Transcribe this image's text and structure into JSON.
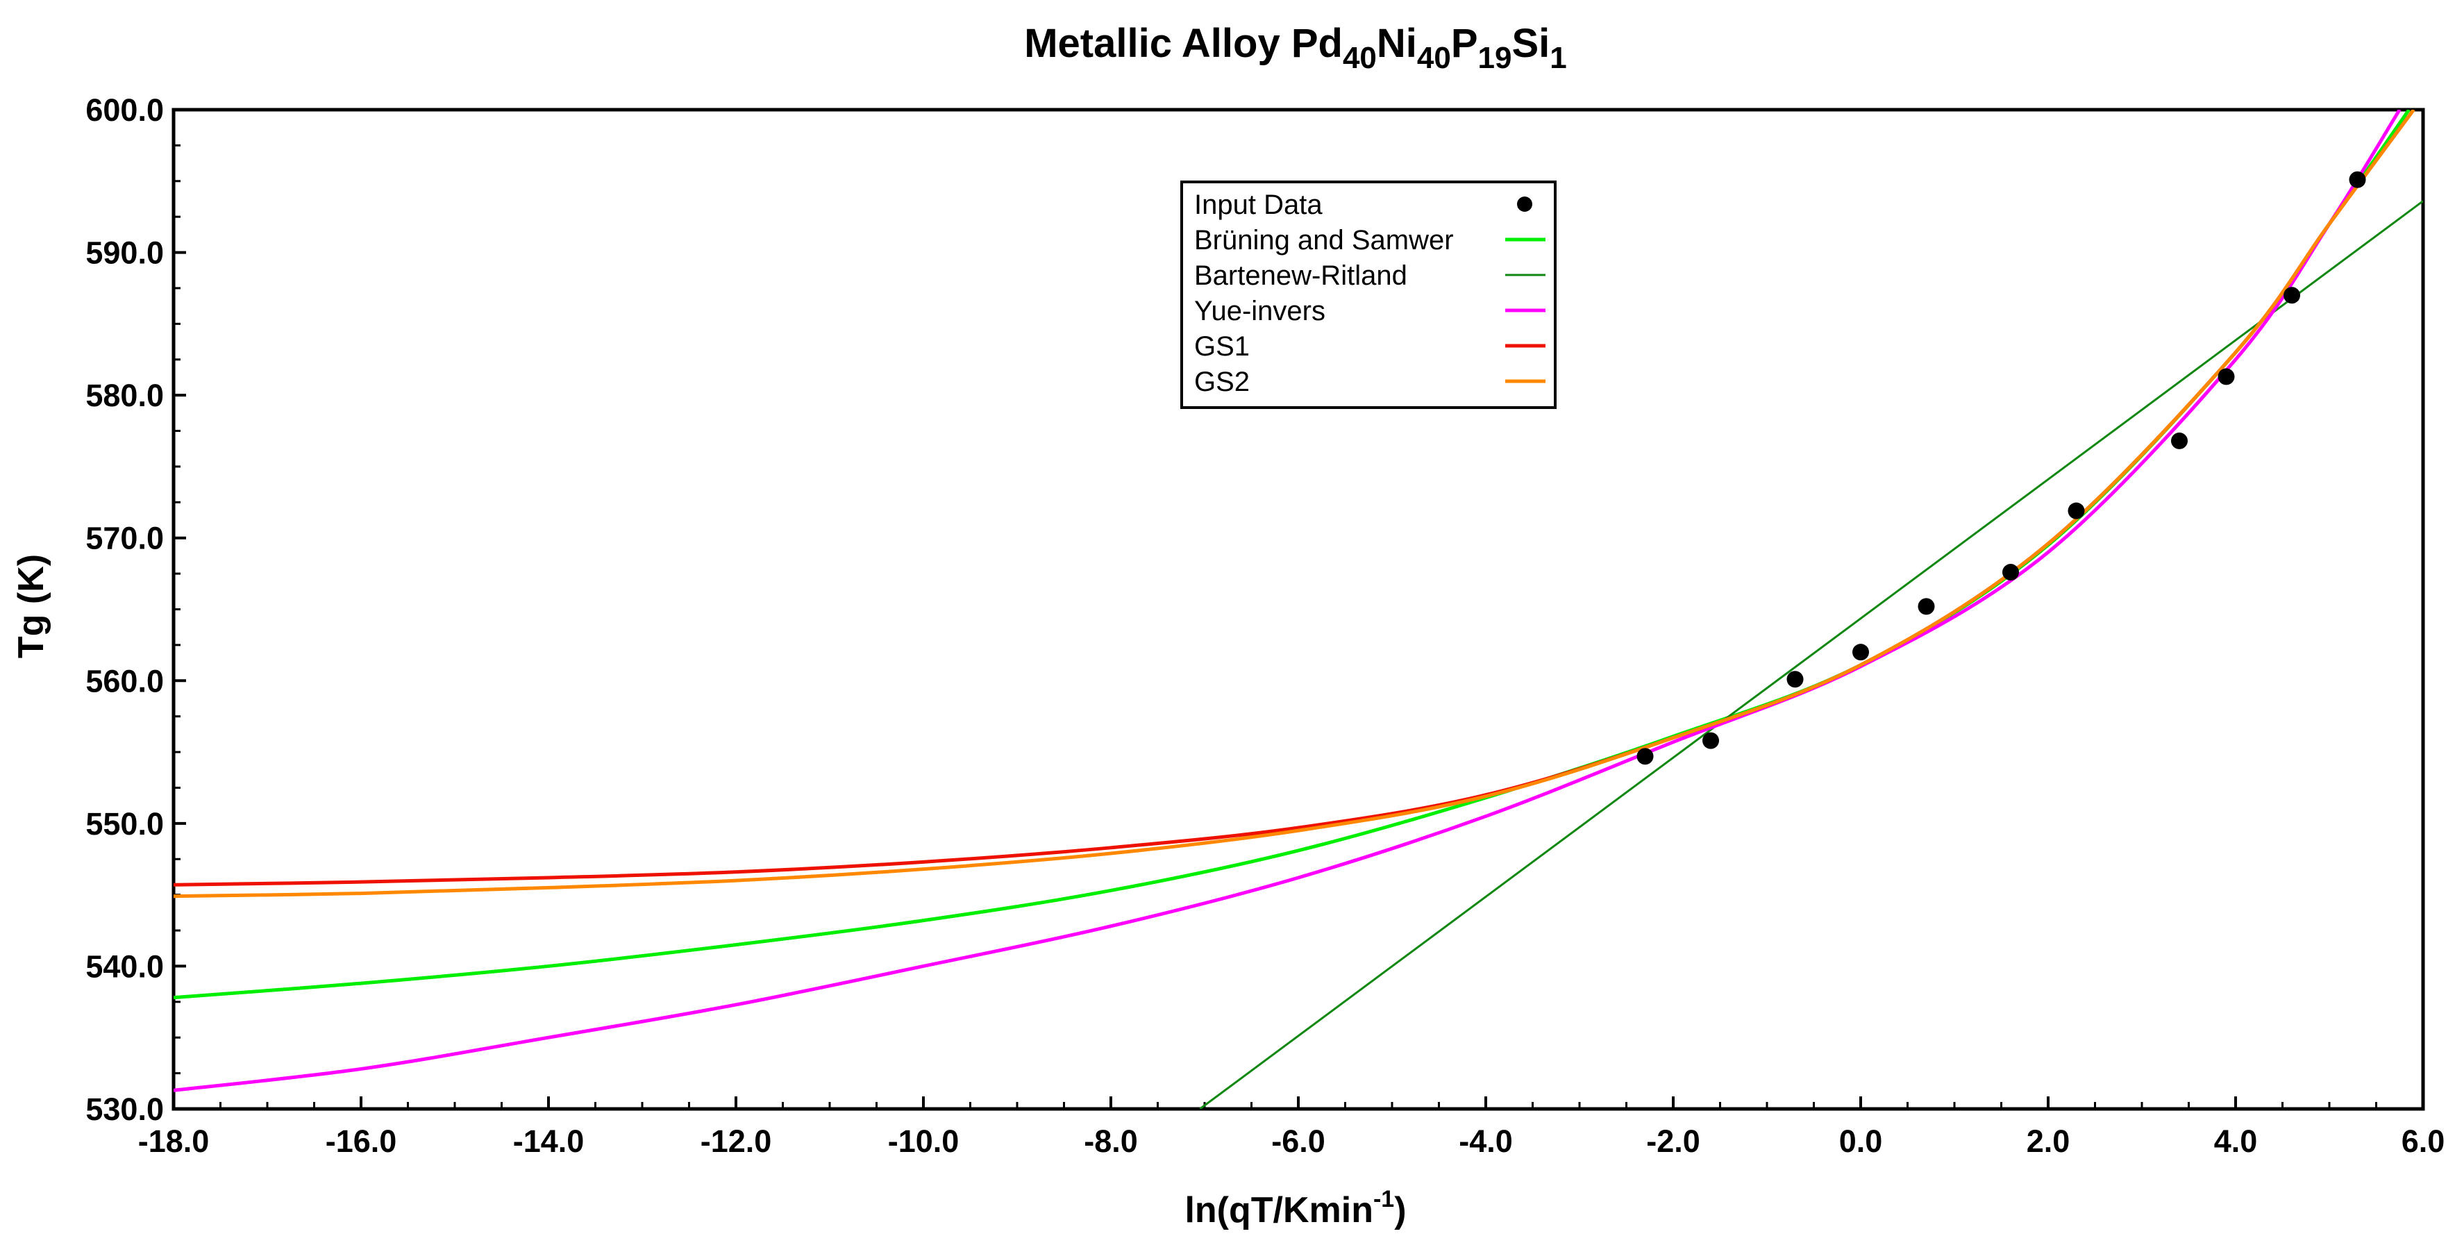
{
  "chart_data": {
    "type": "line",
    "title": {
      "prefix": "Metallic Alloy Pd",
      "parts": [
        {
          "text": "40",
          "sub": true
        },
        {
          "text": "Ni",
          "sub": false
        },
        {
          "text": "40",
          "sub": true
        },
        {
          "text": "P",
          "sub": false
        },
        {
          "text": "19",
          "sub": true
        },
        {
          "text": "Si",
          "sub": false
        },
        {
          "text": "1",
          "sub": true
        }
      ]
    },
    "xlabel": {
      "main": "ln(qT/Kmin",
      "sup": "-1",
      "close": ")"
    },
    "ylabel": "Tg (K)",
    "xlim": [
      -18,
      6
    ],
    "ylim": [
      530,
      600
    ],
    "x_ticks": [
      "-18.0",
      "-16.0",
      "-14.0",
      "-12.0",
      "-10.0",
      "-8.0",
      "-6.0",
      "-4.0",
      "-2.0",
      "0.0",
      "2.0",
      "4.0",
      "6.0"
    ],
    "y_ticks": [
      "530.0",
      "540.0",
      "550.0",
      "560.0",
      "570.0",
      "580.0",
      "590.0",
      "600.0"
    ],
    "legend_position": "top-center",
    "input_data": {
      "name": "Input Data",
      "color": "#000000",
      "points": [
        [
          -2.3,
          554.7
        ],
        [
          -1.6,
          555.8
        ],
        [
          -0.7,
          560.1
        ],
        [
          0.0,
          562.0
        ],
        [
          0.7,
          565.2
        ],
        [
          1.6,
          567.6
        ],
        [
          2.3,
          571.9
        ],
        [
          3.4,
          576.8
        ],
        [
          3.9,
          581.3
        ],
        [
          4.6,
          587.0
        ],
        [
          5.3,
          595.1
        ]
      ]
    },
    "series": [
      {
        "name": "Brüning and Samwer",
        "color": "#00ee00",
        "width": 5,
        "points": [
          [
            -18,
            537.8
          ],
          [
            -16,
            538.8
          ],
          [
            -14,
            540.0
          ],
          [
            -12,
            541.5
          ],
          [
            -10,
            543.2
          ],
          [
            -8,
            545.3
          ],
          [
            -6,
            548.1
          ],
          [
            -4,
            551.8
          ],
          [
            -2,
            556.1
          ],
          [
            0,
            561.1
          ],
          [
            2,
            569.5
          ],
          [
            4,
            583.0
          ],
          [
            5,
            592.0
          ],
          [
            5.85,
            600.0
          ]
        ]
      },
      {
        "name": "Bartenew-Ritland",
        "color": "#118811",
        "width": 3,
        "points": [
          [
            -7.05,
            530.0
          ],
          [
            6.0,
            593.6
          ]
        ]
      },
      {
        "name": "Yue-invers",
        "color": "#ff00ff",
        "width": 5,
        "points": [
          [
            -18,
            531.3
          ],
          [
            -16,
            532.8
          ],
          [
            -14,
            535.0
          ],
          [
            -12,
            537.3
          ],
          [
            -10,
            540.0
          ],
          [
            -8,
            542.8
          ],
          [
            -6,
            546.2
          ],
          [
            -4,
            550.5
          ],
          [
            -2,
            555.7
          ],
          [
            0,
            561.0
          ],
          [
            2,
            569.0
          ],
          [
            4,
            582.5
          ],
          [
            5,
            592.0
          ],
          [
            5.75,
            600.0
          ]
        ]
      },
      {
        "name": "GS1",
        "color": "#ee1100",
        "width": 5,
        "points": [
          [
            -18,
            545.7
          ],
          [
            -16,
            545.9
          ],
          [
            -14,
            546.2
          ],
          [
            -12,
            546.6
          ],
          [
            -10,
            547.3
          ],
          [
            -8,
            548.3
          ],
          [
            -6,
            549.7
          ],
          [
            -4,
            552.0
          ],
          [
            -2,
            556.0
          ],
          [
            0,
            561.1
          ],
          [
            2,
            569.6
          ],
          [
            4,
            583.0
          ],
          [
            5,
            592.0
          ],
          [
            5.9,
            600.0
          ]
        ]
      },
      {
        "name": "GS2",
        "color": "#ff8800",
        "width": 5,
        "points": [
          [
            -18,
            544.9
          ],
          [
            -16,
            545.1
          ],
          [
            -14,
            545.5
          ],
          [
            -12,
            546.0
          ],
          [
            -10,
            546.8
          ],
          [
            -8,
            547.9
          ],
          [
            -6,
            549.5
          ],
          [
            -4,
            551.9
          ],
          [
            -2,
            556.0
          ],
          [
            0,
            561.1
          ],
          [
            2,
            569.6
          ],
          [
            4,
            583.0
          ],
          [
            5,
            592.0
          ],
          [
            5.9,
            600.0
          ]
        ]
      }
    ]
  }
}
